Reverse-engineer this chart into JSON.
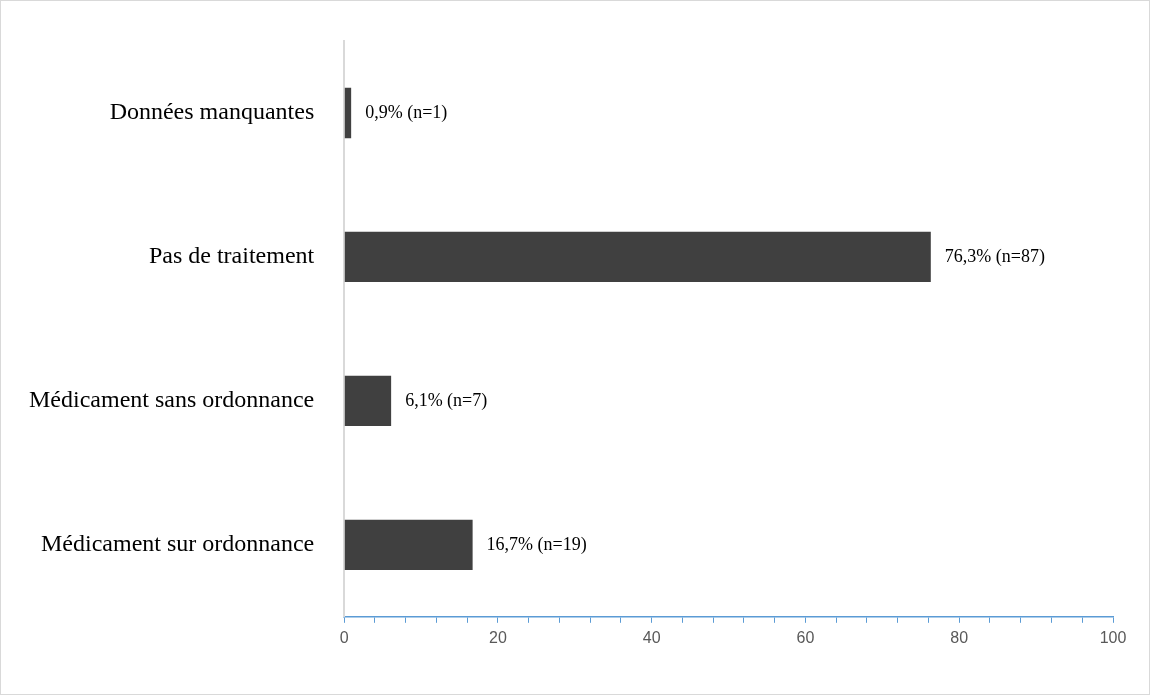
{
  "chart_data": {
    "type": "bar",
    "orientation": "horizontal",
    "categories": [
      "Données manquantes",
      "Pas de traitement",
      "Médicament sans ordonnance",
      "Médicament sur ordonnance"
    ],
    "values": [
      0.9,
      76.3,
      6.1,
      16.7
    ],
    "color": "#404040",
    "value_labels": [
      "0,9% (n=1)",
      "76,3% (n=87)",
      "6,1% (n=7)",
      "16,7% (n=19)"
    ],
    "xlim": [
      0,
      100
    ],
    "xticks": [
      0,
      {
        "value": 4,
        "label": null
      },
      {
        "value": 8,
        "label": null
      },
      {
        "value": 12,
        "label": null
      },
      {
        "value": 16,
        "label": null
      },
      20,
      {
        "value": 24,
        "label": null
      },
      {
        "value": 28,
        "label": null
      },
      {
        "value": 32,
        "label": null
      },
      {
        "value": 36,
        "label": null
      },
      40,
      {
        "value": 44,
        "label": null
      },
      {
        "value": 48,
        "label": null
      },
      {
        "value": 52,
        "label": null
      },
      {
        "value": 56,
        "label": null
      },
      60,
      {
        "value": 64,
        "label": null
      },
      {
        "value": 68,
        "label": null
      },
      {
        "value": 72,
        "label": null
      },
      {
        "value": 76,
        "label": null
      },
      80,
      {
        "value": 84,
        "label": null
      },
      {
        "value": 88,
        "label": null
      },
      {
        "value": 92,
        "label": null
      },
      {
        "value": 96,
        "label": null
      },
      100
    ],
    "grid": false,
    "legend": false
  }
}
